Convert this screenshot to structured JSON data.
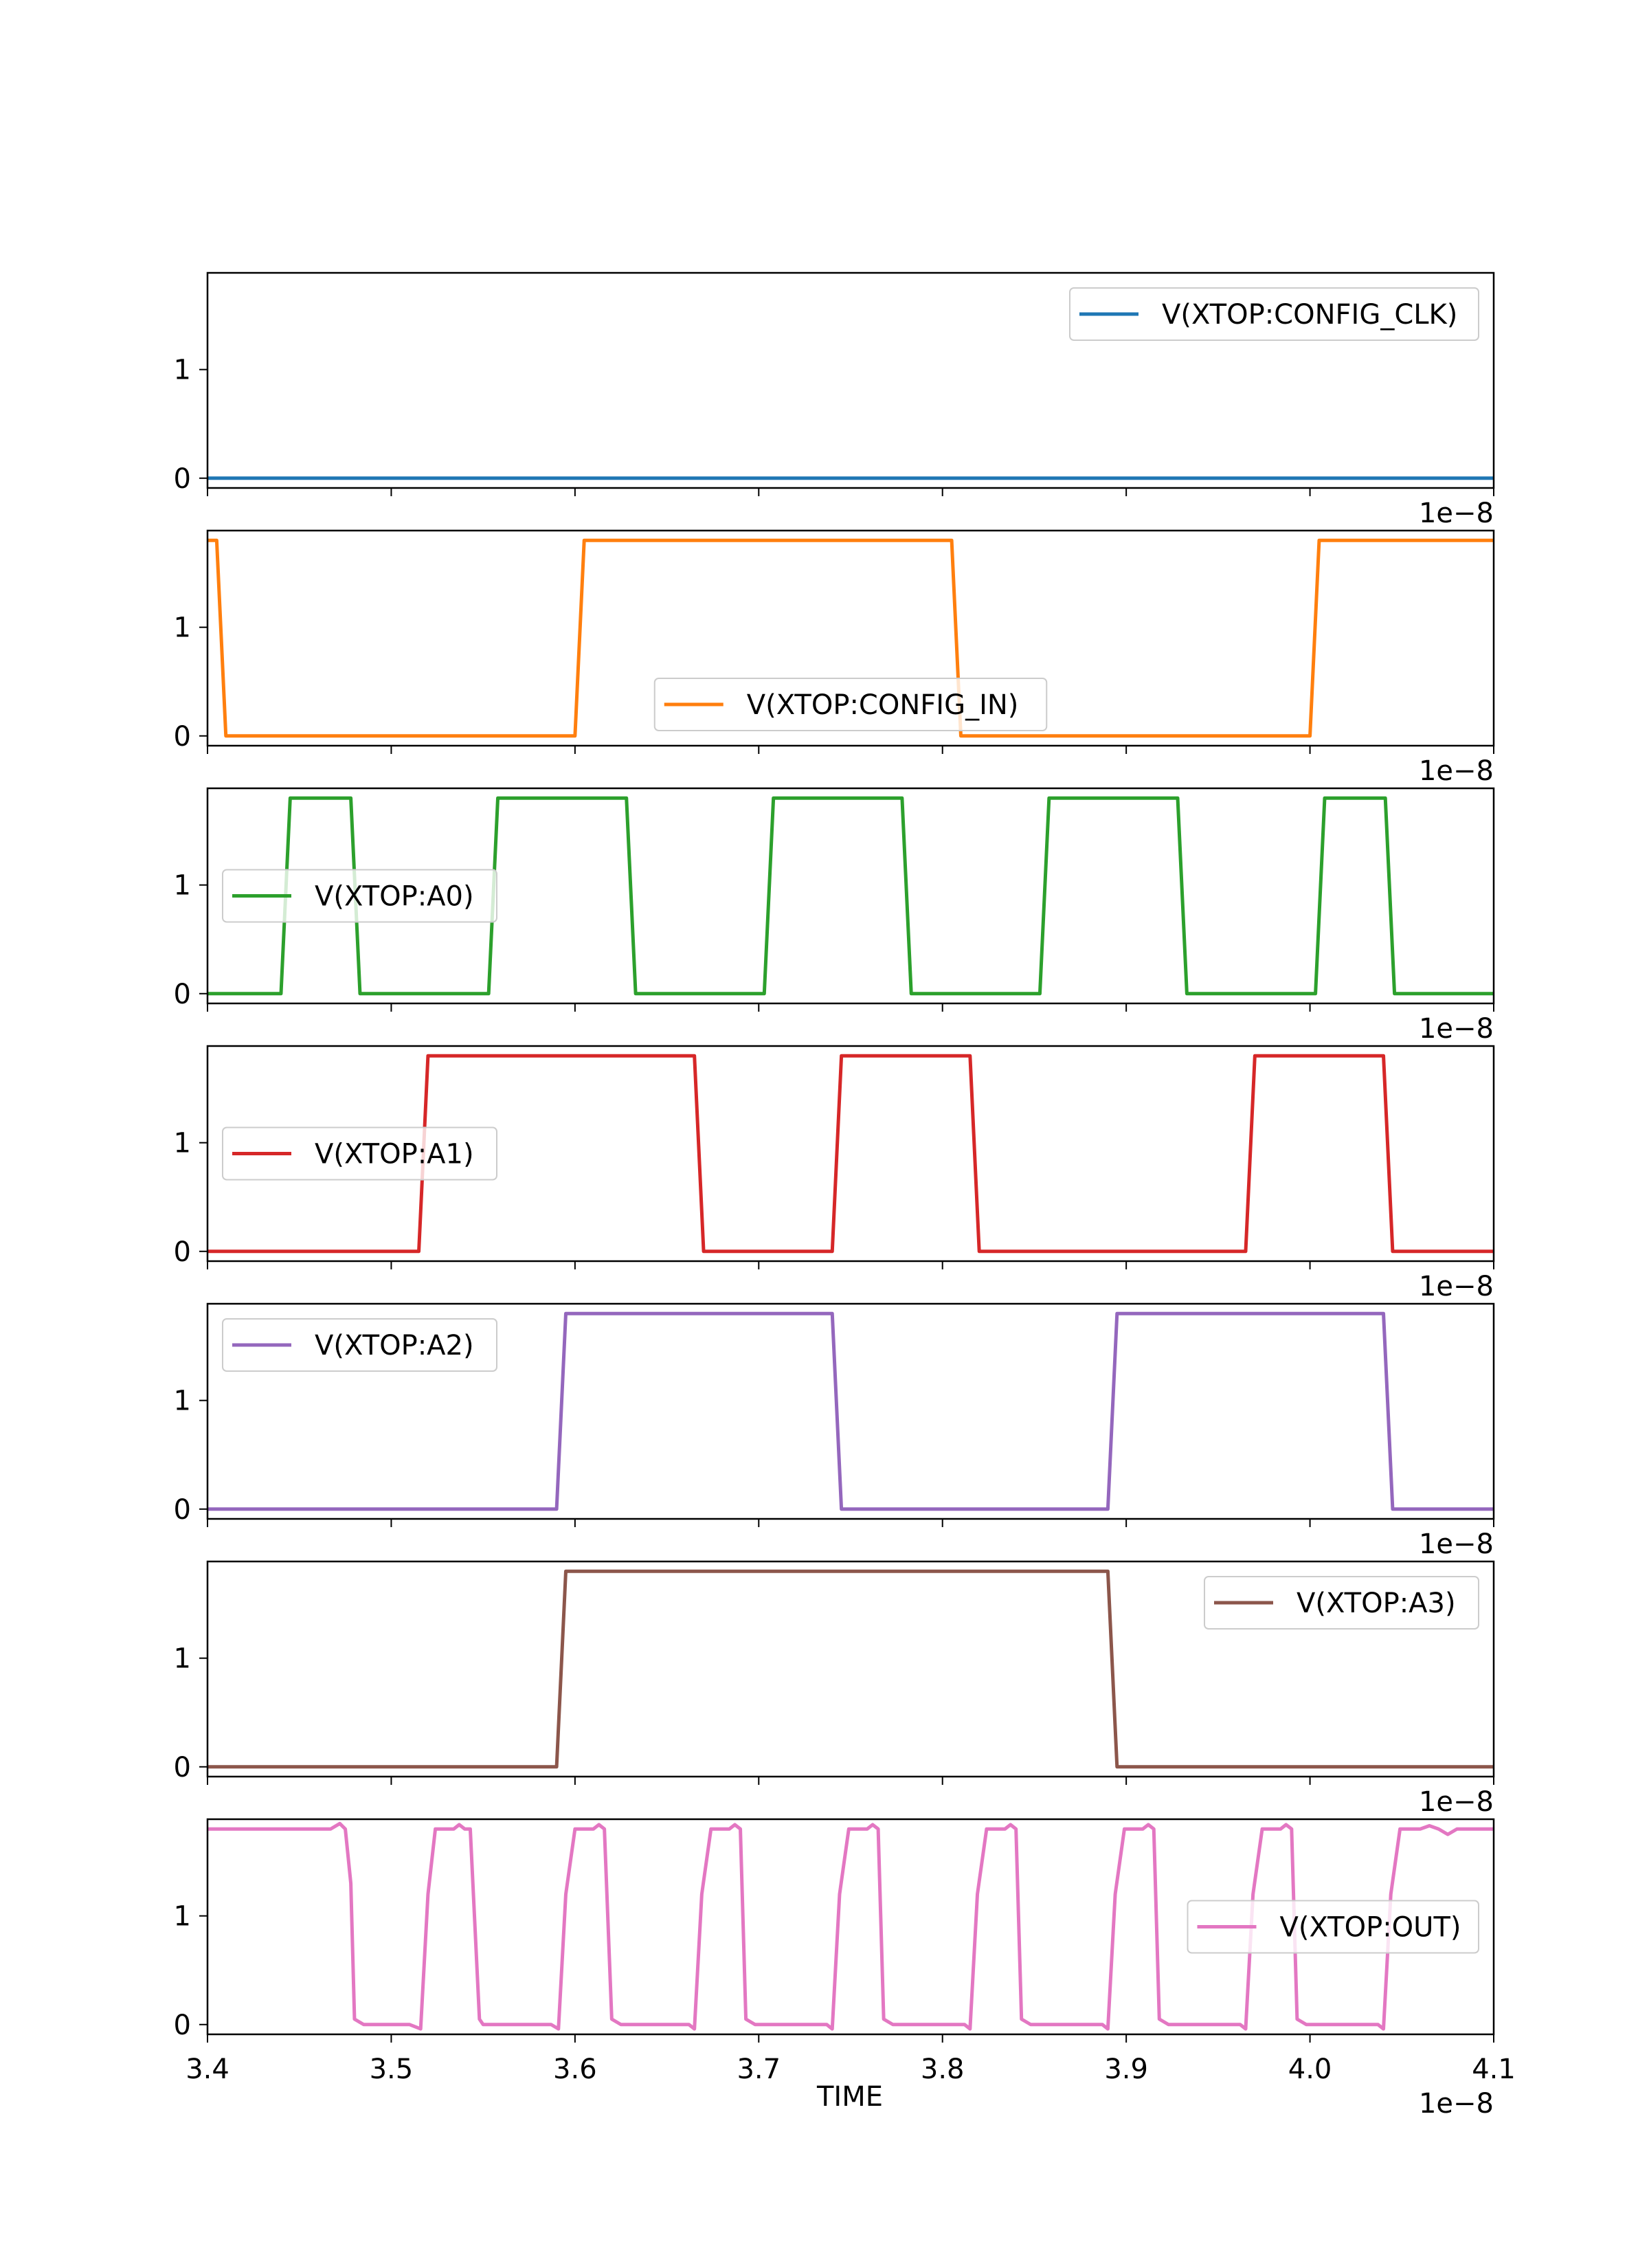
{
  "figure": {
    "xlabel": "TIME",
    "offset_text": "1e−8"
  },
  "colors": {
    "config_clk": "#1f77b4",
    "config_in": "#ff7f0e",
    "a0": "#2ca02c",
    "a1": "#d62728",
    "a2": "#9467bd",
    "a3": "#8c564b",
    "out": "#e377c2"
  },
  "chart_data": [
    {
      "type": "line",
      "series": [
        {
          "name": "V(XTOP:CONFIG_CLK)",
          "x": [
            3.4,
            4.1
          ],
          "y": [
            0,
            0
          ]
        }
      ],
      "legend": "upper right",
      "xlim": [
        3.4,
        4.1
      ],
      "ylim": [
        -0.09,
        1.89
      ],
      "yticks": [
        0,
        1
      ],
      "xticks": [
        3.4,
        3.5,
        3.6,
        3.7,
        3.8,
        3.9,
        4.0,
        4.1
      ],
      "x_tick_labels_shown": false,
      "x_offset_text": "1e−8"
    },
    {
      "type": "line",
      "series": [
        {
          "name": "V(XTOP:CONFIG_IN)",
          "x": [
            3.4,
            3.405,
            3.41,
            3.6,
            3.605,
            3.805,
            3.81,
            4.0,
            4.005,
            4.1
          ],
          "y": [
            1.8,
            1.8,
            0,
            0,
            1.8,
            1.8,
            0,
            0,
            1.8,
            1.8
          ]
        }
      ],
      "legend": "lower center",
      "xlim": [
        3.4,
        4.1
      ],
      "ylim": [
        -0.09,
        1.89
      ],
      "yticks": [
        0,
        1
      ],
      "xticks": [
        3.4,
        3.5,
        3.6,
        3.7,
        3.8,
        3.9,
        4.0,
        4.1
      ],
      "x_tick_labels_shown": false,
      "x_offset_text": "1e−8"
    },
    {
      "type": "line",
      "series": [
        {
          "name": "V(XTOP:A0)",
          "x": [
            3.4,
            3.44,
            3.445,
            3.478,
            3.483,
            3.553,
            3.558,
            3.628,
            3.633,
            3.703,
            3.708,
            3.778,
            3.783,
            3.853,
            3.858,
            3.928,
            3.933,
            4.003,
            4.008,
            4.041,
            4.046,
            4.1
          ],
          "y": [
            0,
            0,
            1.8,
            1.8,
            0,
            0,
            1.8,
            1.8,
            0,
            0,
            1.8,
            1.8,
            0,
            0,
            1.8,
            1.8,
            0,
            0,
            1.8,
            1.8,
            0,
            0
          ]
        }
      ],
      "legend": "center left",
      "xlim": [
        3.4,
        4.1
      ],
      "ylim": [
        -0.09,
        1.89
      ],
      "yticks": [
        0,
        1
      ],
      "xticks": [
        3.4,
        3.5,
        3.6,
        3.7,
        3.8,
        3.9,
        4.0,
        4.1
      ],
      "x_tick_labels_shown": false,
      "x_offset_text": "1e−8"
    },
    {
      "type": "line",
      "series": [
        {
          "name": "V(XTOP:A1)",
          "x": [
            3.4,
            3.515,
            3.52,
            3.665,
            3.67,
            3.74,
            3.745,
            3.815,
            3.82,
            3.965,
            3.97,
            4.04,
            4.045,
            4.1
          ],
          "y": [
            0,
            0,
            1.8,
            1.8,
            0,
            0,
            1.8,
            1.8,
            0,
            0,
            1.8,
            1.8,
            0,
            0
          ]
        }
      ],
      "legend": "center left",
      "xlim": [
        3.4,
        4.1
      ],
      "ylim": [
        -0.09,
        1.89
      ],
      "yticks": [
        0,
        1
      ],
      "xticks": [
        3.4,
        3.5,
        3.6,
        3.7,
        3.8,
        3.9,
        4.0,
        4.1
      ],
      "x_tick_labels_shown": false,
      "x_offset_text": "1e−8"
    },
    {
      "type": "line",
      "series": [
        {
          "name": "V(XTOP:A2)",
          "x": [
            3.4,
            3.59,
            3.595,
            3.74,
            3.745,
            3.89,
            3.895,
            4.04,
            4.045,
            4.1
          ],
          "y": [
            0,
            0,
            1.8,
            1.8,
            0,
            0,
            1.8,
            1.8,
            0,
            0
          ]
        }
      ],
      "legend": "upper left",
      "xlim": [
        3.4,
        4.1
      ],
      "ylim": [
        -0.09,
        1.89
      ],
      "yticks": [
        0,
        1
      ],
      "xticks": [
        3.4,
        3.5,
        3.6,
        3.7,
        3.8,
        3.9,
        4.0,
        4.1
      ],
      "x_tick_labels_shown": false,
      "x_offset_text": "1e−8"
    },
    {
      "type": "line",
      "series": [
        {
          "name": "V(XTOP:A3)",
          "x": [
            3.4,
            3.59,
            3.595,
            3.89,
            3.895,
            4.1
          ],
          "y": [
            0,
            0,
            1.8,
            1.8,
            0,
            0
          ]
        }
      ],
      "legend": "upper right",
      "xlim": [
        3.4,
        4.1
      ],
      "ylim": [
        -0.09,
        1.89
      ],
      "yticks": [
        0,
        1
      ],
      "xticks": [
        3.4,
        3.5,
        3.6,
        3.7,
        3.8,
        3.9,
        4.0,
        4.1
      ],
      "x_tick_labels_shown": false,
      "x_offset_text": "1e−8"
    },
    {
      "type": "line",
      "series": [
        {
          "name": "V(XTOP:OUT)",
          "x": [
            3.4,
            3.467,
            3.472,
            3.475,
            3.478,
            3.48,
            3.485,
            3.51,
            3.516,
            3.52,
            3.524,
            3.534,
            3.537,
            3.54,
            3.543,
            3.548,
            3.55,
            3.587,
            3.591,
            3.595,
            3.6,
            3.61,
            3.613,
            3.616,
            3.62,
            3.625,
            3.662,
            3.665,
            3.669,
            3.674,
            3.684,
            3.687,
            3.69,
            3.693,
            3.698,
            3.7,
            3.737,
            3.74,
            3.744,
            3.749,
            3.759,
            3.762,
            3.765,
            3.768,
            3.773,
            3.775,
            3.812,
            3.815,
            3.819,
            3.824,
            3.834,
            3.837,
            3.84,
            3.843,
            3.848,
            3.85,
            3.887,
            3.89,
            3.894,
            3.899,
            3.909,
            3.912,
            3.915,
            3.918,
            3.923,
            3.925,
            3.962,
            3.965,
            3.969,
            3.974,
            3.984,
            3.987,
            3.99,
            3.993,
            3.998,
            4.0,
            4.037,
            4.04,
            4.044,
            4.049,
            4.06,
            4.065,
            4.07,
            4.075,
            4.08,
            4.1
          ],
          "y": [
            1.8,
            1.8,
            1.85,
            1.8,
            1.3,
            0.05,
            0,
            0,
            -0.04,
            1.2,
            1.8,
            1.8,
            1.84,
            1.8,
            1.8,
            0.05,
            0,
            0,
            -0.04,
            1.2,
            1.8,
            1.8,
            1.84,
            1.8,
            0.05,
            0,
            0,
            -0.04,
            1.2,
            1.8,
            1.8,
            1.84,
            1.8,
            0.05,
            0,
            0,
            0,
            -0.04,
            1.2,
            1.8,
            1.8,
            1.84,
            1.8,
            0.05,
            0,
            0,
            0,
            -0.04,
            1.2,
            1.8,
            1.8,
            1.84,
            1.8,
            0.05,
            0,
            0,
            0,
            -0.04,
            1.2,
            1.8,
            1.8,
            1.84,
            1.8,
            0.05,
            0,
            0,
            0,
            -0.04,
            1.2,
            1.8,
            1.8,
            1.84,
            1.8,
            0.05,
            0,
            0,
            0,
            -0.04,
            1.2,
            1.8,
            1.8,
            1.83,
            1.8,
            1.75,
            1.8,
            1.8
          ]
        }
      ],
      "legend": "center right",
      "xlim": [
        3.4,
        4.1
      ],
      "ylim": [
        -0.09,
        1.89
      ],
      "yticks": [
        0,
        1
      ],
      "xticks": [
        3.4,
        3.5,
        3.6,
        3.7,
        3.8,
        3.9,
        4.0,
        4.1
      ],
      "x_tick_labels": [
        "3.4",
        "3.5",
        "3.6",
        "3.7",
        "3.8",
        "3.9",
        "4.0",
        "4.1"
      ],
      "x_tick_labels_shown": true,
      "xlabel": "TIME",
      "x_offset_text": "1e−8"
    }
  ]
}
